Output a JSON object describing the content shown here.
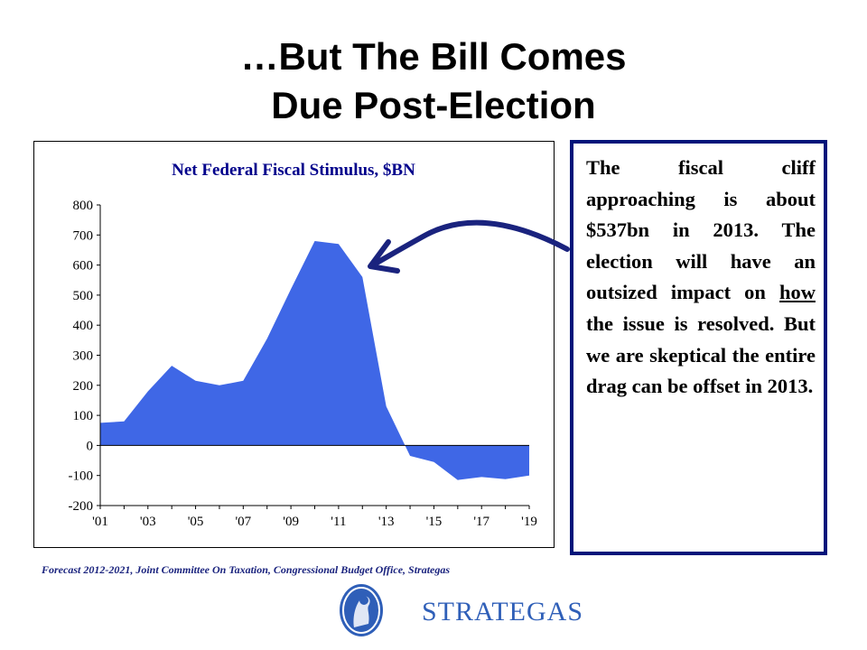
{
  "slide": {
    "title_line1": "…But The Bill Comes",
    "title_line2": "Due Post-Election",
    "source": "Forecast 2012-2021, Joint Committee On Taxation, Congressional Budget Office, Strategas",
    "logo_text": "STRATEGAS"
  },
  "textbox": {
    "before": "The fiscal cliff approaching is about $537bn in 2013. The election will have an outsized impact on ",
    "underlined": "how",
    "after": " the issue is resolved. But we are skeptical the entire drag can be offset in 2013."
  },
  "colors": {
    "area_fill": "#3f67e6",
    "chart_title": "#00008b",
    "arrow": "#1a237e",
    "textbox_border": "#00157a",
    "logo": "#2f5fb8"
  },
  "chart_data": {
    "type": "area",
    "title": "Net Federal Fiscal Stimulus, $BN",
    "x": [
      2001,
      2002,
      2003,
      2004,
      2005,
      2006,
      2007,
      2008,
      2009,
      2010,
      2011,
      2012,
      2013,
      2014,
      2015,
      2016,
      2017,
      2018,
      2019
    ],
    "values": [
      75,
      80,
      180,
      265,
      215,
      200,
      215,
      355,
      520,
      680,
      670,
      560,
      130,
      -35,
      -55,
      -115,
      -105,
      -112,
      -100
    ],
    "x_tick_labels": [
      "'01",
      "'03",
      "'05",
      "'07",
      "'09",
      "'11",
      "'13",
      "'15",
      "'17",
      "'19"
    ],
    "y_ticks": [
      800,
      700,
      600,
      500,
      400,
      300,
      200,
      100,
      0,
      -100,
      -200
    ],
    "ylim": [
      -200,
      800
    ],
    "xlim": [
      2001,
      2019
    ]
  }
}
